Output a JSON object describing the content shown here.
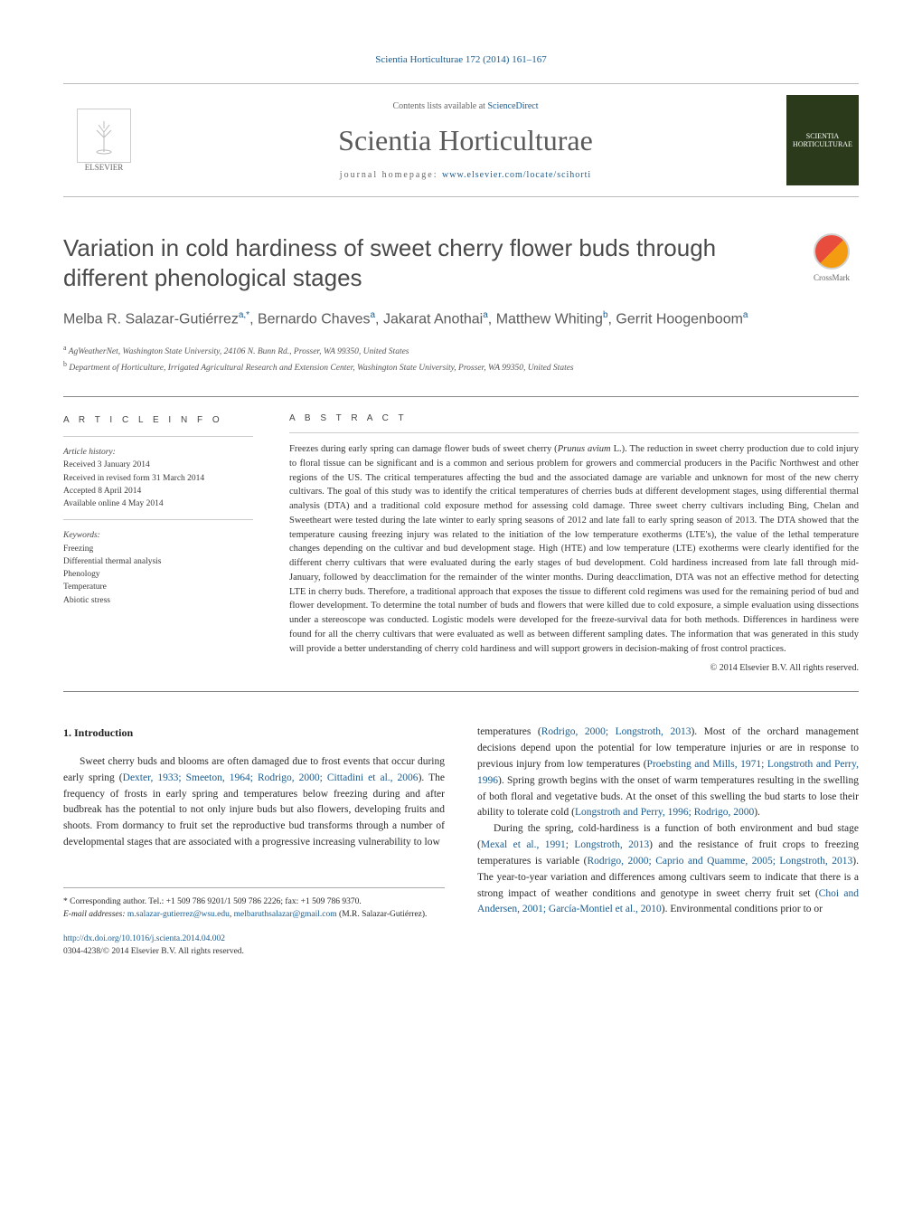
{
  "citation": "Scientia Horticulturae 172 (2014) 161–167",
  "header": {
    "contents_prefix": "Contents lists available at ",
    "contents_link": "ScienceDirect",
    "journal": "Scientia Horticulturae",
    "homepage_prefix": "journal homepage: ",
    "homepage_link": "www.elsevier.com/locate/scihorti",
    "publisher": "ELSEVIER"
  },
  "crossmark": "CrossMark",
  "title": "Variation in cold hardiness of sweet cherry flower buds through different phenological stages",
  "authors_html": "Melba R. Salazar-Gutiérrez<sup>a,*</sup>, Bernardo Chaves<sup>a</sup>, Jakarat Anothai<sup>a</sup>, Matthew Whiting<sup>b</sup>, Gerrit Hoogenboom<sup>a</sup>",
  "affiliations": {
    "a": "AgWeatherNet, Washington State University, 24106 N. Bunn Rd., Prosser, WA 99350, United States",
    "b": "Department of Horticulture, Irrigated Agricultural Research and Extension Center, Washington State University, Prosser, WA 99350, United States"
  },
  "article_info": {
    "heading": "A R T I C L E   I N F O",
    "history_label": "Article history:",
    "received": "Received 3 January 2014",
    "revised": "Received in revised form 31 March 2014",
    "accepted": "Accepted 8 April 2014",
    "online": "Available online 4 May 2014",
    "keywords_label": "Keywords:",
    "keywords": [
      "Freezing",
      "Differential thermal analysis",
      "Phenology",
      "Temperature",
      "Abiotic stress"
    ]
  },
  "abstract": {
    "heading": "A B S T R A C T",
    "text": "Freezes during early spring can damage flower buds of sweet cherry (Prunus avium L.). The reduction in sweet cherry production due to cold injury to floral tissue can be significant and is a common and serious problem for growers and commercial producers in the Pacific Northwest and other regions of the US. The critical temperatures affecting the bud and the associated damage are variable and unknown for most of the new cherry cultivars. The goal of this study was to identify the critical temperatures of cherries buds at different development stages, using differential thermal analysis (DTA) and a traditional cold exposure method for assessing cold damage. Three sweet cherry cultivars including Bing, Chelan and Sweetheart were tested during the late winter to early spring seasons of 2012 and late fall to early spring season of 2013. The DTA showed that the temperature causing freezing injury was related to the initiation of the low temperature exotherms (LTE's), the value of the lethal temperature changes depending on the cultivar and bud development stage. High (HTE) and low temperature (LTE) exotherms were clearly identified for the different cherry cultivars that were evaluated during the early stages of bud development. Cold hardiness increased from late fall through mid-January, followed by deacclimation for the remainder of the winter months. During deacclimation, DTA was not an effective method for detecting LTE in cherry buds. Therefore, a traditional approach that exposes the tissue to different cold regimens was used for the remaining period of bud and flower development. To determine the total number of buds and flowers that were killed due to cold exposure, a simple evaluation using dissections under a stereoscope was conducted. Logistic models were developed for the freeze-survival data for both methods. Differences in hardiness were found for all the cherry cultivars that were evaluated as well as between different sampling dates. The information that was generated in this study will provide a better understanding of cherry cold hardiness and will support growers in decision-making of frost control practices.",
    "copyright": "© 2014 Elsevier B.V. All rights reserved."
  },
  "body": {
    "section_heading": "1.  Introduction",
    "col1_p1": "Sweet cherry buds and blooms are often damaged due to frost events that occur during early spring (Dexter, 1933; Smeeton, 1964; Rodrigo, 2000; Cittadini et al., 2006). The frequency of frosts in early spring and temperatures below freezing during and after budbreak has the potential to not only injure buds but also flowers, developing fruits and shoots. From dormancy to fruit set the reproductive bud transforms through a number of developmental stages that are associated with a progressive increasing vulnerability to low",
    "col2_p1": "temperatures (Rodrigo, 2000; Longstroth, 2013). Most of the orchard management decisions depend upon the potential for low temperature injuries or are in response to previous injury from low temperatures (Proebsting and Mills, 1971; Longstroth and Perry, 1996). Spring growth begins with the onset of warm temperatures resulting in the swelling of both floral and vegetative buds. At the onset of this swelling the bud starts to lose their ability to tolerate cold (Longstroth and Perry, 1996; Rodrigo, 2000).",
    "col2_p2": "During the spring, cold-hardiness is a function of both environment and bud stage (Mexal et al., 1991; Longstroth, 2013) and the resistance of fruit crops to freezing temperatures is variable (Rodrigo, 2000; Caprio and Quamme, 2005; Longstroth, 2013). The year-to-year variation and differences among cultivars seem to indicate that there is a strong impact of weather conditions and genotype in sweet cherry fruit set (Choi and Andersen, 2001; García-Montiel et al., 2010). Environmental conditions prior to or"
  },
  "footnotes": {
    "corresponding": "* Corresponding author. Tel.: +1 509 786 9201/1 509 786 2226; fax: +1 509 786 9370.",
    "email_label": "E-mail addresses:",
    "email1": "m.salazar-gutierrez@wsu.edu",
    "email2": "melbaruthsalazar@gmail.com",
    "email_suffix": "(M.R. Salazar-Gutiérrez)."
  },
  "doi": {
    "link": "http://dx.doi.org/10.1016/j.scienta.2014.04.002",
    "issn": "0304-4238/© 2014 Elsevier B.V. All rights reserved."
  },
  "colors": {
    "link": "#1a5c8f",
    "text": "#3a3a3a",
    "rule": "#888888"
  }
}
